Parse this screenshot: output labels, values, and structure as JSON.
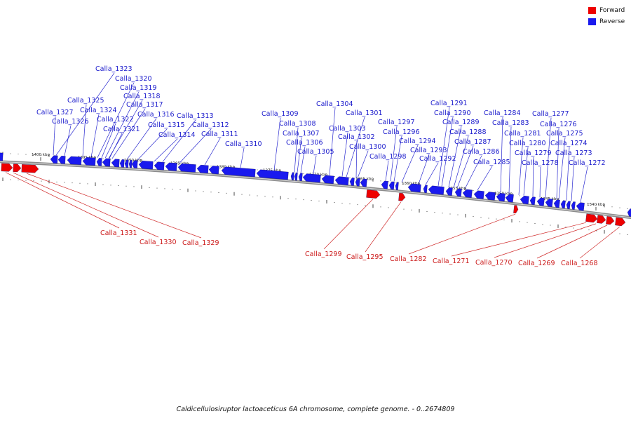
{
  "legend": [
    {
      "label": "Forward",
      "color": "#ee0000"
    },
    {
      "label": "Reverse",
      "color": "#1a1aee"
    }
  ],
  "caption": "Caldicellulosiruptor lactoaceticus 6A chromosome, complete genome. - 0..2674809",
  "colors": {
    "forward": "#ee0000",
    "reverse": "#1a1aee",
    "backbone": "#8c8c8c"
  },
  "ruler": [
    {
      "label": "1400 kbp",
      "pos_kbp": 1400
    },
    {
      "label": "1395 kbp",
      "pos_kbp": 1395
    },
    {
      "label": "1390 kbp",
      "pos_kbp": 1390
    },
    {
      "label": "1385 kbp",
      "pos_kbp": 1385
    },
    {
      "label": "1380 kbp",
      "pos_kbp": 1380
    },
    {
      "label": "1375 kbp",
      "pos_kbp": 1375
    },
    {
      "label": "1370 kbp",
      "pos_kbp": 1370
    },
    {
      "label": "1365 kbp",
      "pos_kbp": 1365
    },
    {
      "label": "1360 kbp",
      "pos_kbp": 1360
    },
    {
      "label": "1355 kbp",
      "pos_kbp": 1355
    },
    {
      "label": "1350 kbp",
      "pos_kbp": 1350
    },
    {
      "label": "1345 kbp",
      "pos_kbp": 1345
    },
    {
      "label": "1340 kbp",
      "pos_kbp": 1340
    }
  ],
  "reverse_genes": [
    "Calla_1323",
    "Calla_1320",
    "Calla_1319",
    "Calla_1318",
    "Calla_1325",
    "Calla_1317",
    "Calla_1324",
    "Calla_1327",
    "Calla_1316",
    "Calla_1313",
    "Calla_1322",
    "Calla_1326",
    "Calla_1315",
    "Calla_1312",
    "Calla_1321",
    "Calla_1314",
    "Calla_1311",
    "Calla_1310",
    "Calla_1304",
    "Calla_1309",
    "Calla_1301",
    "Calla_1308",
    "Calla_1303",
    "Calla_1307",
    "Calla_1302",
    "Calla_1306",
    "Calla_1300",
    "Calla_1305",
    "Calla_1298",
    "Calla_1297",
    "Calla_1296",
    "Calla_1294",
    "Calla_1293",
    "Calla_1292",
    "Calla_1291",
    "Calla_1290",
    "Calla_1289",
    "Calla_1288",
    "Calla_1287",
    "Calla_1286",
    "Calla_1285",
    "Calla_1284",
    "Calla_1283",
    "Calla_1281",
    "Calla_1280",
    "Calla_1279",
    "Calla_1278",
    "Calla_1277",
    "Calla_1276",
    "Calla_1275",
    "Calla_1274",
    "Calla_1273",
    "Calla_1272"
  ],
  "forward_genes": [
    "Calla_1331",
    "Calla_1330",
    "Calla_1329",
    "Calla_1299",
    "Calla_1295",
    "Calla_1282",
    "Calla_1271",
    "Calla_1270",
    "Calla_1269",
    "Calla_1268"
  ]
}
